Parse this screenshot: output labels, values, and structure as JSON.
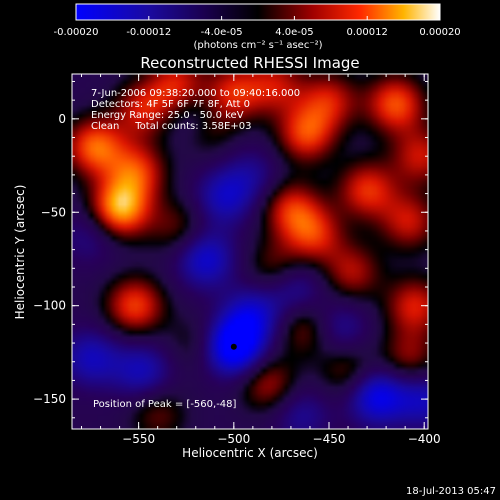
{
  "chart_data": {
    "type": "heatmap",
    "title": "Reconstructed RHESSI Image",
    "xlabel": "Heliocentric X (arcsec)",
    "ylabel": "Heliocentric Y (arcsec)",
    "xlim": [
      -585,
      -398
    ],
    "ylim": [
      -166,
      24
    ],
    "x_ticks": [
      -550,
      -500,
      -450,
      -400
    ],
    "x_tick_labels": [
      "-550",
      "-500",
      "-450",
      "-400"
    ],
    "y_ticks": [
      0,
      -50,
      -100,
      -150
    ],
    "y_tick_labels": [
      "0",
      "-50",
      "-100",
      "-150"
    ],
    "colorbar": {
      "range": [
        -0.0002,
        0.0002
      ],
      "ticks": [
        -0.0002,
        -0.00012,
        -4e-05,
        4e-05,
        0.00012,
        0.0002
      ],
      "tick_labels": [
        "-0.00020",
        "-0.00012",
        "-4.0e-05",
        "4.0e-05",
        "0.00012",
        "0.00020"
      ],
      "units": "(photons cm⁻² s⁻¹ asec⁻²)"
    },
    "annotations": [
      "7-Jun-2006 09:38:20.000 to 09:40:16.000",
      "Detectors: 4F 5F 6F 7F 8F, Att 0",
      "Energy Range: 25.0 - 50.0 keV",
      "Clean     Total counts: 3.58E+03"
    ],
    "peak_text": "Position of Peak = [-560,-48]",
    "peak": [
      -560,
      -48
    ],
    "blobs": [
      {
        "x": -573,
        "y": -15,
        "v": 0.00016
      },
      {
        "x": -560,
        "y": -48,
        "v": 0.0002
      },
      {
        "x": -551,
        "y": -28,
        "v": 0.00013
      },
      {
        "x": -548,
        "y": 5,
        "v": 0.00011
      },
      {
        "x": -530,
        "y": 18,
        "v": 0.00012
      },
      {
        "x": -515,
        "y": -5,
        "v": 9e-05
      },
      {
        "x": -500,
        "y": 14,
        "v": 0.00012
      },
      {
        "x": -478,
        "y": 18,
        "v": 0.0001
      },
      {
        "x": -462,
        "y": -8,
        "v": 0.00014
      },
      {
        "x": -450,
        "y": 10,
        "v": 0.00011
      },
      {
        "x": -415,
        "y": 8,
        "v": 0.00015
      },
      {
        "x": -402,
        "y": -20,
        "v": 0.00011
      },
      {
        "x": -430,
        "y": -38,
        "v": 0.00013
      },
      {
        "x": -408,
        "y": -55,
        "v": 0.00011
      },
      {
        "x": -470,
        "y": -48,
        "v": 0.00012
      },
      {
        "x": -458,
        "y": -62,
        "v": 0.00012
      },
      {
        "x": -438,
        "y": -82,
        "v": 0.0001
      },
      {
        "x": -478,
        "y": -80,
        "v": 8e-05
      },
      {
        "x": -530,
        "y": -58,
        "v": 7e-05
      },
      {
        "x": -552,
        "y": -100,
        "v": 0.00014
      },
      {
        "x": -462,
        "y": -112,
        "v": 9e-05
      },
      {
        "x": -405,
        "y": -100,
        "v": 0.00012
      },
      {
        "x": -408,
        "y": -128,
        "v": 9e-05
      },
      {
        "x": -482,
        "y": -142,
        "v": 0.0001
      },
      {
        "x": -440,
        "y": -135,
        "v": 8e-05
      },
      {
        "x": -520,
        "y": -120,
        "v": 5e-05
      },
      {
        "x": -540,
        "y": -158,
        "v": 7e-05
      },
      {
        "x": -520,
        "y": 0,
        "v": -8e-05
      },
      {
        "x": -505,
        "y": -42,
        "v": -0.0001
      },
      {
        "x": -515,
        "y": -75,
        "v": -0.00012
      },
      {
        "x": -490,
        "y": -30,
        "v": -6e-05
      },
      {
        "x": -500,
        "y": -122,
        "v": -0.0002
      },
      {
        "x": -490,
        "y": -105,
        "v": -0.00011
      },
      {
        "x": -575,
        "y": -62,
        "v": -6e-05
      },
      {
        "x": -575,
        "y": -128,
        "v": -0.0001
      },
      {
        "x": -548,
        "y": -135,
        "v": -0.0001
      },
      {
        "x": -468,
        "y": -90,
        "v": -9e-05
      },
      {
        "x": -445,
        "y": -112,
        "v": -8e-05
      },
      {
        "x": -425,
        "y": -148,
        "v": -0.00015
      },
      {
        "x": -400,
        "y": -150,
        "v": -0.0001
      },
      {
        "x": -465,
        "y": -158,
        "v": -7e-05
      }
    ]
  },
  "footer": {
    "timestamp": "18-Jul-2013 05:47"
  }
}
